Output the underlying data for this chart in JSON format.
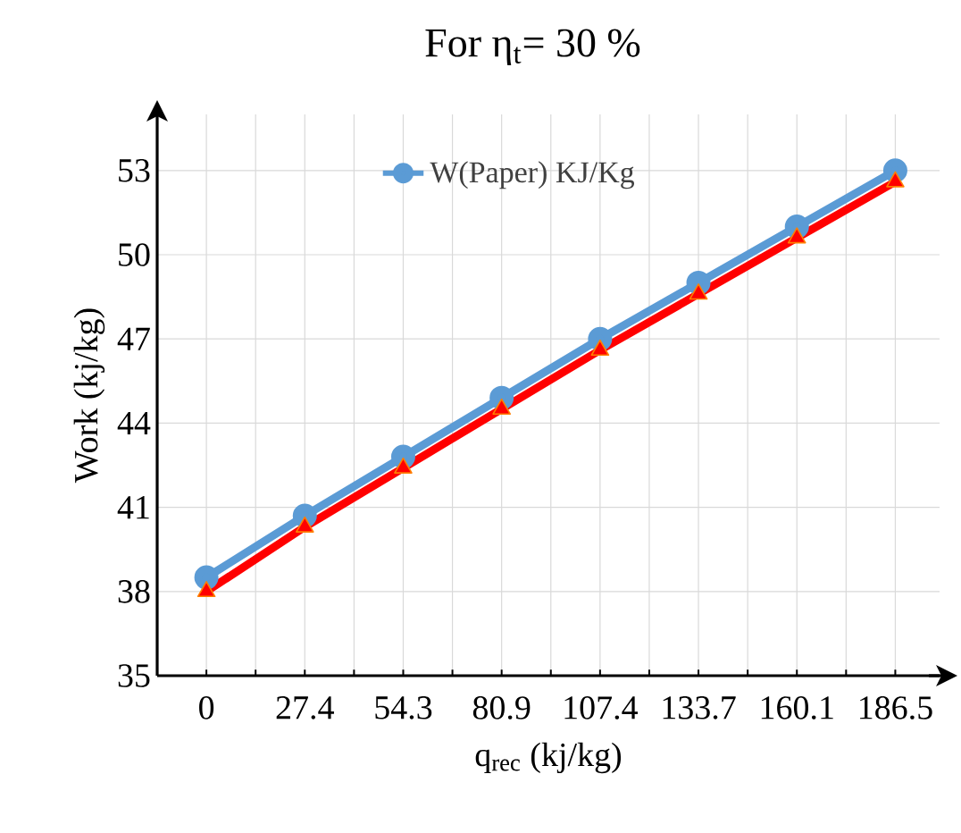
{
  "chart_data": {
    "type": "line",
    "title": "For η$_{t}$= 30 %",
    "xlabel": "q$_{rec}$  (kj/kg)",
    "ylabel": "Work  (kj/kg)",
    "categories": [
      "0",
      "27.4",
      "54.3",
      "80.9",
      "107.4",
      "133.7",
      "160.1",
      "186.5"
    ],
    "series": [
      {
        "name": "W(Paper) KJ/Kg",
        "color": "#5b9bd5",
        "marker": "circle",
        "values": [
          38.5,
          40.7,
          42.8,
          44.9,
          47.0,
          49.0,
          51.0,
          53.0
        ]
      },
      {
        "color": "#ff0000",
        "marker": "triangle",
        "values": [
          38.0,
          40.3,
          42.4,
          44.5,
          46.6,
          48.6,
          50.6,
          52.6
        ]
      }
    ],
    "ylim": [
      35,
      55
    ],
    "yticks": [
      35,
      38,
      41,
      44,
      47,
      50,
      53
    ],
    "grid": true,
    "legend": "top",
    "line_style": "solid"
  }
}
